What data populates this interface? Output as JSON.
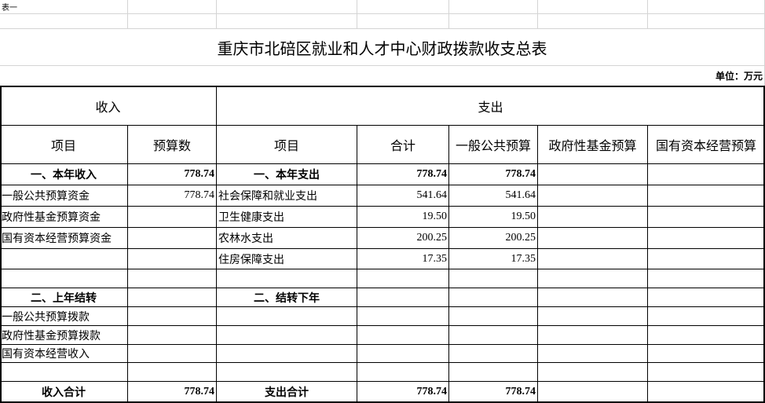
{
  "header": {
    "sheet_label": "表一",
    "title": "重庆市北碚区就业和人才中心财政拨款收支总表",
    "unit": "单位：万元"
  },
  "table": {
    "groups": [
      "收入",
      "支出"
    ],
    "columns": [
      "项目",
      "预算数",
      "项目",
      "合计",
      "一般公共预算",
      "政府性基金预算",
      "国有资本经营预算"
    ],
    "rows": [
      [
        "一、本年收入",
        "778.74",
        "一、本年支出",
        "778.74",
        "778.74",
        null,
        null
      ],
      [
        "一般公共预算资金",
        "778.74",
        "社会保障和就业支出",
        "541.64",
        "541.64",
        null,
        null
      ],
      [
        "政府性基金预算资金",
        null,
        "卫生健康支出",
        "19.50",
        "19.50",
        null,
        null
      ],
      [
        "国有资本经营预算资金",
        null,
        "农林水支出",
        "200.25",
        "200.25",
        null,
        null
      ],
      [
        null,
        null,
        "住房保障支出",
        "17.35",
        "17.35",
        null,
        null
      ],
      [
        null,
        null,
        null,
        null,
        null,
        null,
        null
      ],
      [
        "二、上年结转",
        null,
        "二、结转下年",
        null,
        null,
        null,
        null
      ],
      [
        "一般公共预算拨款",
        null,
        null,
        null,
        null,
        null,
        null
      ],
      [
        "政府性基金预算拨款",
        null,
        null,
        null,
        null,
        null,
        null
      ],
      [
        "国有资本经营收入",
        null,
        null,
        null,
        null,
        null,
        null
      ],
      [
        null,
        null,
        null,
        null,
        null,
        null,
        null
      ],
      [
        "收入合计",
        "778.74",
        "支出合计",
        "778.74",
        "778.74",
        null,
        null
      ]
    ]
  }
}
